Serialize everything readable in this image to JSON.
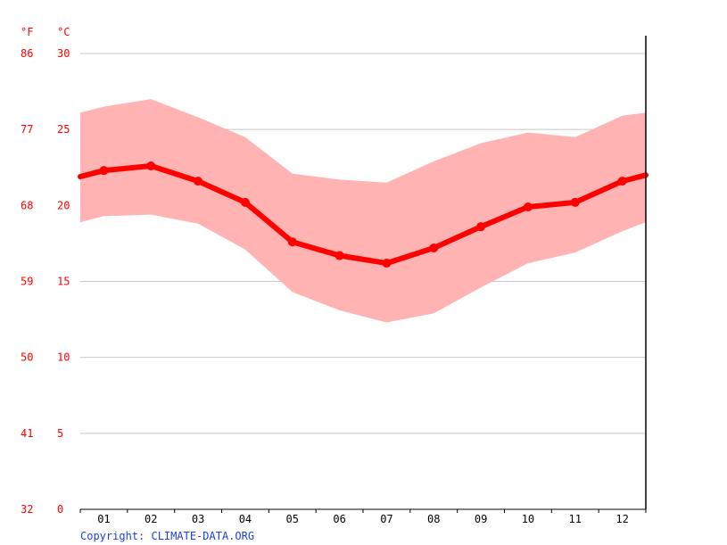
{
  "chart_data": {
    "type": "line",
    "title": "",
    "xlabel": "",
    "ylabel": "",
    "unit_f": "°F",
    "unit_c": "°C",
    "categories": [
      "01",
      "02",
      "03",
      "04",
      "05",
      "06",
      "07",
      "08",
      "09",
      "10",
      "11",
      "12"
    ],
    "y_celsius_ticks": [
      "0",
      "5",
      "10",
      "15",
      "20",
      "25",
      "30"
    ],
    "y_fahrenheit_ticks": [
      "32",
      "41",
      "50",
      "59",
      "68",
      "77",
      "86"
    ],
    "ylim": [
      0,
      30
    ],
    "grid": true,
    "series": [
      {
        "values": [
          22.3,
          22.6,
          21.6,
          20.2,
          17.6,
          16.7,
          16.2,
          17.2,
          18.6,
          19.9,
          20.2,
          21.6
        ]
      }
    ],
    "range": {
      "max": [
        26.5,
        27.0,
        25.8,
        24.5,
        22.1,
        21.7,
        21.5,
        22.9,
        24.1,
        24.8,
        24.5,
        25.9
      ],
      "min": [
        19.3,
        19.4,
        18.8,
        17.1,
        14.3,
        13.1,
        12.3,
        12.9,
        14.6,
        16.2,
        16.9,
        18.3
      ]
    },
    "edge_left": {
      "value": 21.9,
      "max": 26.1,
      "min": 18.9
    },
    "edge_right": {
      "value": 22.0,
      "max": 26.1,
      "min": 18.9
    },
    "colors": {
      "line": "#ff0000",
      "band": "#ffb3b3",
      "grid": "#c8c8c8",
      "axis": "#000000",
      "tick_text": "#ff0000"
    }
  },
  "footer": {
    "copyright": "Copyright: CLIMATE-DATA.ORG"
  }
}
